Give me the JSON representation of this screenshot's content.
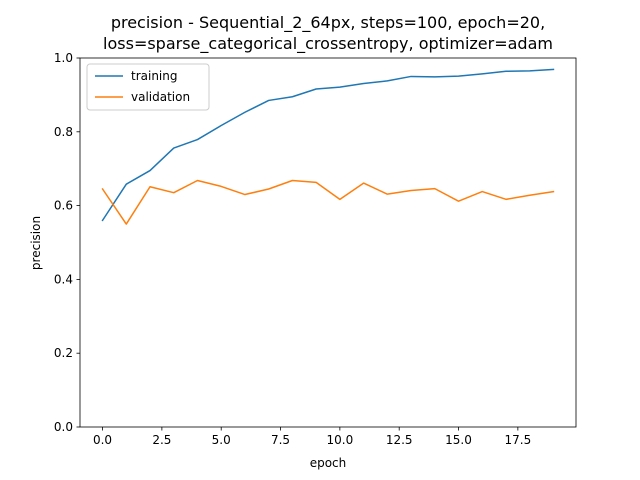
{
  "chart_data": {
    "type": "line",
    "title": [
      "precision - Sequential_2_64px, steps=100, epoch=20,",
      "loss=sparse_categorical_crossentropy, optimizer=adam"
    ],
    "xlabel": "epoch",
    "ylabel": "precision",
    "xlim": [
      -0.95,
      19.95
    ],
    "ylim": [
      0.0,
      1.0
    ],
    "xticks": [
      0.0,
      2.5,
      5.0,
      7.5,
      10.0,
      12.5,
      15.0,
      17.5
    ],
    "xtick_labels": [
      "0.0",
      "2.5",
      "5.0",
      "7.5",
      "10.0",
      "12.5",
      "15.0",
      "17.5"
    ],
    "yticks": [
      0.0,
      0.2,
      0.4,
      0.6,
      0.8,
      1.0
    ],
    "ytick_labels": [
      "0.0",
      "0.2",
      "0.4",
      "0.6",
      "0.8",
      "1.0"
    ],
    "grid": false,
    "legend_position": "top-left",
    "x": [
      0,
      1,
      2,
      3,
      4,
      5,
      6,
      7,
      8,
      9,
      10,
      11,
      12,
      13,
      14,
      15,
      16,
      17,
      18,
      19
    ],
    "series": [
      {
        "name": "training",
        "color": "#1f77b4",
        "values": [
          0.56,
          0.658,
          0.695,
          0.756,
          0.779,
          0.817,
          0.853,
          0.885,
          0.895,
          0.916,
          0.921,
          0.931,
          0.938,
          0.95,
          0.949,
          0.951,
          0.957,
          0.964,
          0.965,
          0.969
        ]
      },
      {
        "name": "validation",
        "color": "#ff7f0e",
        "values": [
          0.645,
          0.55,
          0.651,
          0.635,
          0.668,
          0.652,
          0.63,
          0.645,
          0.668,
          0.663,
          0.617,
          0.661,
          0.631,
          0.641,
          0.646,
          0.612,
          0.638,
          0.617,
          0.628,
          0.638
        ]
      }
    ]
  }
}
